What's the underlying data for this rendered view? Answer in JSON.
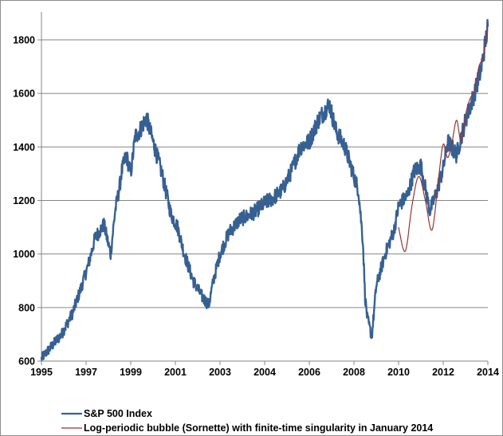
{
  "chart_data": {
    "type": "line",
    "title": "",
    "xlabel": "",
    "ylabel": "",
    "ylim": [
      600,
      1900
    ],
    "yticks": [
      600,
      800,
      1000,
      1200,
      1400,
      1600,
      1800
    ],
    "ytick_labels": [
      "600",
      "800",
      "1000",
      "1200",
      "1400",
      "1600",
      "1800"
    ],
    "xtick_labels": [
      "1995",
      "1997",
      "1999",
      "2001",
      "2003",
      "2004",
      "2006",
      "2008",
      "2010",
      "2012",
      "2014"
    ],
    "grid": true,
    "legend_position": "bottom",
    "series": [
      {
        "name": "S&P 500 Index",
        "color": "#376092",
        "x": [
          0.0,
          0.2,
          0.45,
          0.7,
          0.9,
          1.05,
          1.2,
          1.4,
          1.55,
          1.65,
          1.75,
          1.8,
          1.9,
          2.0,
          2.1,
          2.2,
          2.35,
          2.5,
          2.7,
          2.9,
          3.05,
          3.2,
          3.4,
          3.6,
          3.75,
          3.85,
          4.0,
          4.2,
          4.45,
          4.6,
          4.8,
          5.0,
          5.2,
          5.4,
          5.6,
          5.8,
          6.0,
          6.2,
          6.45,
          6.6,
          6.8,
          7.0,
          7.1,
          7.2,
          7.25,
          7.3,
          7.4,
          7.5,
          7.7,
          7.9,
          8.0,
          8.2,
          8.35,
          8.5,
          8.7,
          8.85,
          9.0,
          9.1,
          9.3,
          9.5,
          9.7,
          9.85,
          10.0
        ],
        "values": [
          610,
          650,
          700,
          780,
          880,
          960,
          1060,
          1110,
          1000,
          1160,
          1250,
          1310,
          1370,
          1300,
          1440,
          1460,
          1510,
          1420,
          1300,
          1150,
          1100,
          1000,
          900,
          840,
          810,
          900,
          1000,
          1080,
          1130,
          1140,
          1160,
          1190,
          1210,
          1240,
          1310,
          1400,
          1420,
          1500,
          1560,
          1460,
          1400,
          1290,
          1240,
          1050,
          840,
          760,
          690,
          880,
          1000,
          1090,
          1180,
          1220,
          1310,
          1330,
          1160,
          1230,
          1320,
          1420,
          1370,
          1500,
          1600,
          1690,
          1850
        ]
      },
      {
        "name": "Log-periodic bubble (Sornette) with finite-time singularity in January 2014",
        "color": "#943634",
        "x": [
          8.0,
          8.15,
          8.3,
          8.45,
          8.6,
          8.75,
          8.9,
          9.0,
          9.1,
          9.2,
          9.3,
          9.4,
          9.5,
          9.6,
          9.7,
          9.8,
          9.9,
          10.0
        ],
        "values": [
          1100,
          1010,
          1180,
          1290,
          1200,
          1090,
          1290,
          1410,
          1360,
          1420,
          1500,
          1420,
          1520,
          1580,
          1610,
          1700,
          1740,
          1860
        ]
      }
    ]
  }
}
